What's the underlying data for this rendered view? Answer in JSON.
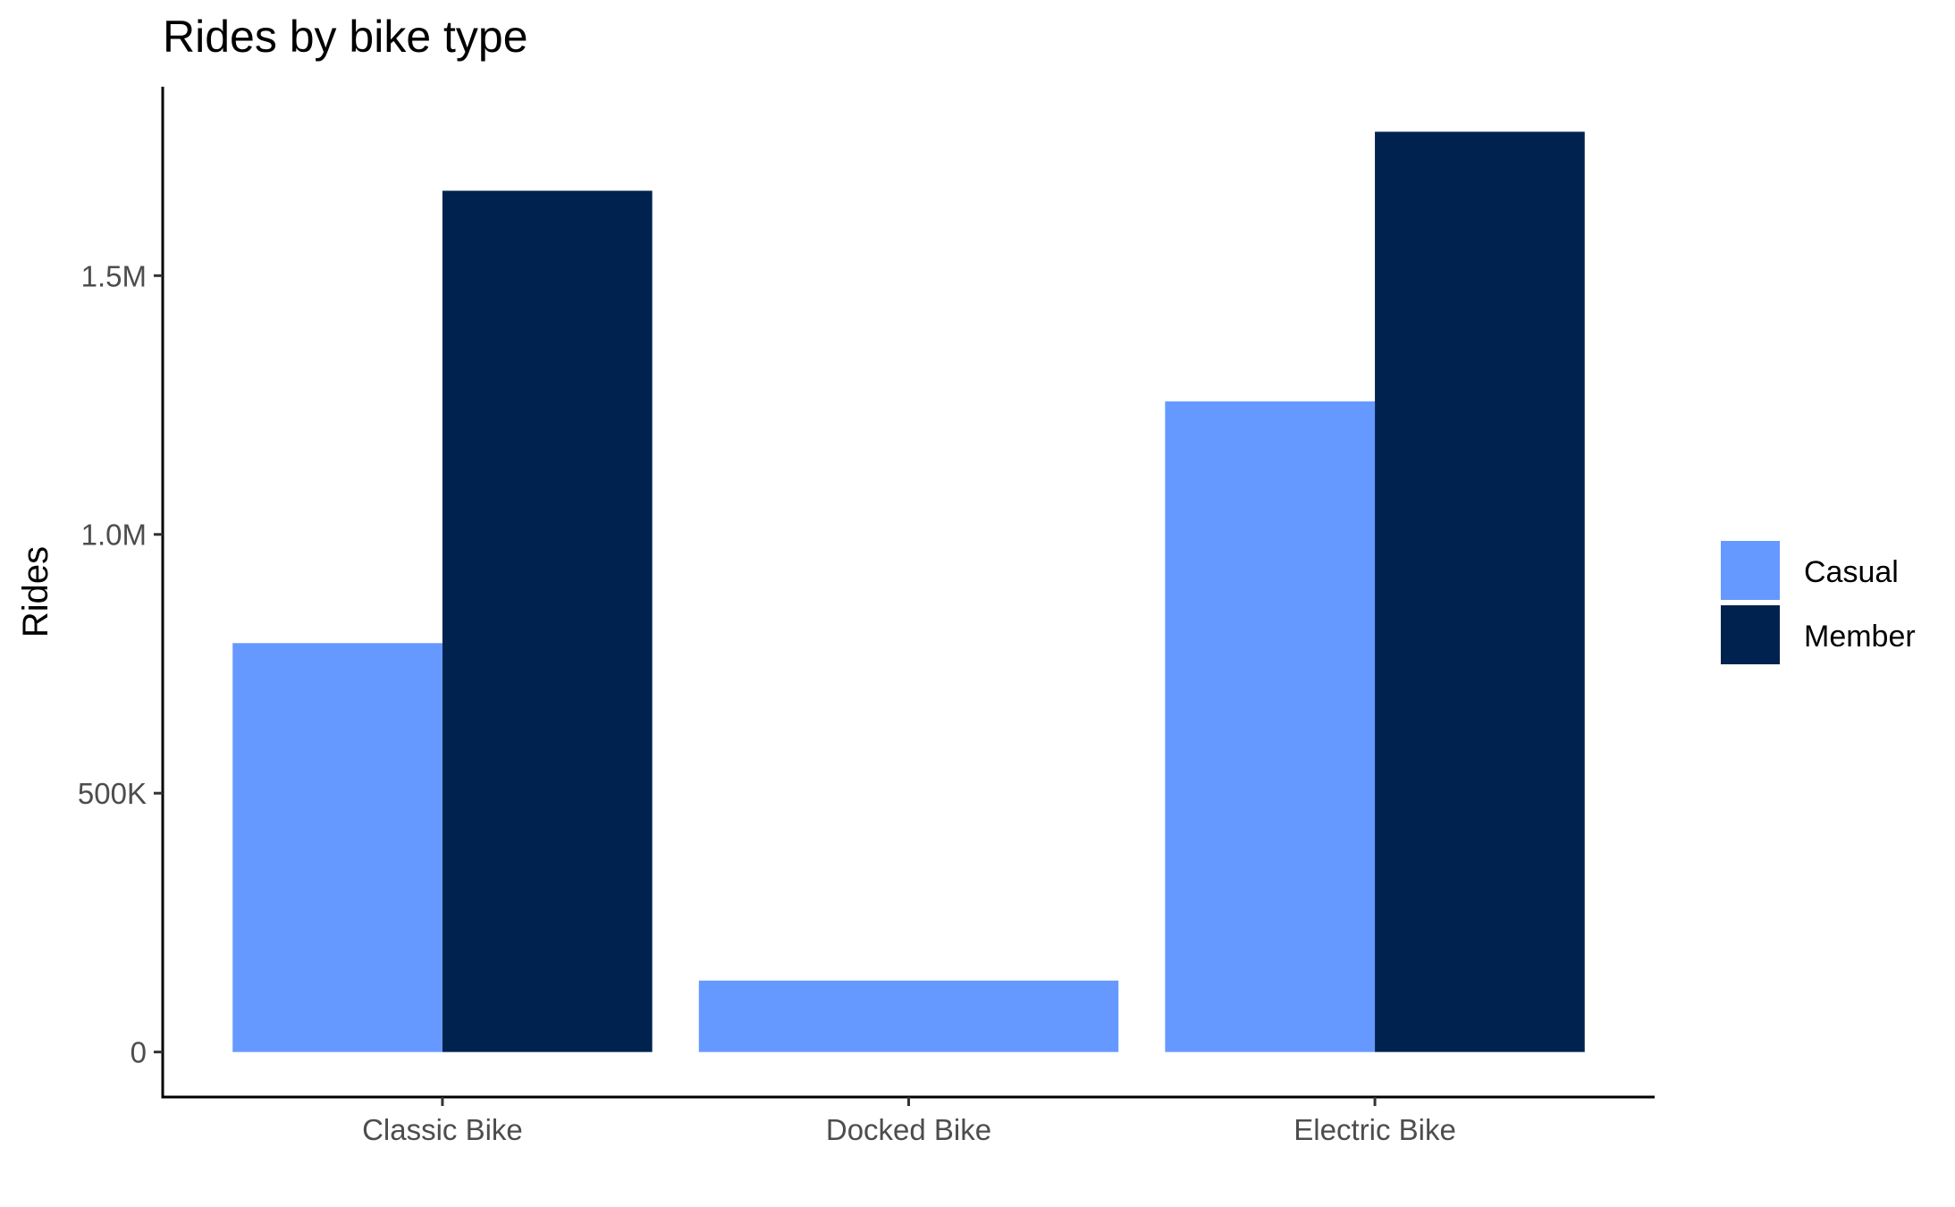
{
  "chart_data": {
    "type": "bar",
    "title": "Rides by bike type",
    "xlabel": "",
    "ylabel": "Rides",
    "categories": [
      "Classic Bike",
      "Docked Bike",
      "Electric Bike"
    ],
    "series": [
      {
        "name": "Casual",
        "color": "#6699ff",
        "values": [
          790000,
          138000,
          1257000
        ]
      },
      {
        "name": "Member",
        "color": "#00224e",
        "values": [
          1664000,
          null,
          1778000
        ]
      }
    ],
    "ylim": [
      -87000,
      1865000
    ],
    "y_ticks": [
      0,
      500000,
      1000000,
      1500000
    ],
    "y_tick_labels": [
      "0",
      "500K",
      "1.0M",
      "1.5M"
    ],
    "grid": false,
    "legend_position": "right"
  }
}
